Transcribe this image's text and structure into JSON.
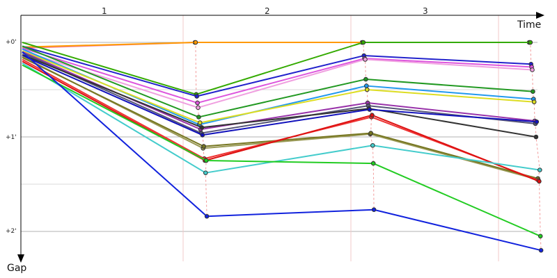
{
  "chart_data": {
    "type": "line",
    "title": "",
    "xlabel": "Time",
    "ylabel": "Gap",
    "lap_labels": [
      "1",
      "2",
      "3"
    ],
    "y_ticks": [
      "+0'",
      "+1'",
      "+2'"
    ],
    "ylim": [
      0,
      2.2
    ],
    "y_inverted": true,
    "grid": true,
    "series": [
      {
        "color": "#f080a8",
        "points": [
          [
            0.0,
            0.06
          ],
          [
            1.0,
            0.0
          ],
          [
            2.0,
            0.0
          ],
          [
            3.0,
            0.0
          ]
        ]
      },
      {
        "color": "#ff9900",
        "points": [
          [
            0.0,
            0.05
          ],
          [
            1.0,
            0.0
          ],
          [
            2.0,
            0.0
          ],
          [
            3.0,
            0.0
          ]
        ]
      },
      {
        "color": "#33aa00",
        "points": [
          [
            0.0,
            0.0
          ],
          [
            1.0,
            0.55
          ],
          [
            2.0,
            0.0
          ],
          [
            3.0,
            0.0
          ]
        ]
      },
      {
        "color": "#2222cc",
        "points": [
          [
            0.0,
            0.04
          ],
          [
            1.0,
            0.57
          ],
          [
            2.0,
            0.14
          ],
          [
            3.0,
            0.23
          ]
        ]
      },
      {
        "color": "#dd55dd",
        "points": [
          [
            0.0,
            0.06
          ],
          [
            1.0,
            0.64
          ],
          [
            2.0,
            0.17
          ],
          [
            3.0,
            0.26
          ]
        ]
      },
      {
        "color": "#f0a0e0",
        "points": [
          [
            0.0,
            0.09
          ],
          [
            1.0,
            0.69
          ],
          [
            2.0,
            0.18
          ],
          [
            3.0,
            0.29
          ]
        ]
      },
      {
        "color": "#229922",
        "points": [
          [
            0.0,
            0.04
          ],
          [
            1.0,
            0.79
          ],
          [
            2.0,
            0.39
          ],
          [
            3.0,
            0.52
          ]
        ]
      },
      {
        "color": "#2299ee",
        "points": [
          [
            0.0,
            0.07
          ],
          [
            1.0,
            0.87
          ],
          [
            2.0,
            0.46
          ],
          [
            3.0,
            0.6
          ]
        ]
      },
      {
        "color": "#dddd22",
        "points": [
          [
            0.0,
            0.09
          ],
          [
            1.0,
            0.85
          ],
          [
            2.0,
            0.5
          ],
          [
            3.0,
            0.63
          ]
        ]
      },
      {
        "color": "#9933aa",
        "points": [
          [
            0.0,
            0.1
          ],
          [
            1.0,
            0.92
          ],
          [
            2.0,
            0.64
          ],
          [
            3.0,
            0.83
          ]
        ]
      },
      {
        "color": "#555577",
        "points": [
          [
            0.0,
            0.11
          ],
          [
            1.0,
            0.96
          ],
          [
            2.0,
            0.67
          ],
          [
            3.0,
            0.86
          ]
        ]
      },
      {
        "color": "#333333",
        "points": [
          [
            0.0,
            0.13
          ],
          [
            1.0,
            0.9
          ],
          [
            2.0,
            0.7
          ],
          [
            3.0,
            1.0
          ]
        ]
      },
      {
        "color": "#1111bb",
        "points": [
          [
            0.0,
            0.14
          ],
          [
            1.0,
            0.98
          ],
          [
            2.0,
            0.71
          ],
          [
            3.0,
            0.84
          ]
        ]
      },
      {
        "color": "#999955",
        "points": [
          [
            0.0,
            0.15
          ],
          [
            1.0,
            1.12
          ],
          [
            2.0,
            0.97
          ],
          [
            3.0,
            1.45
          ]
        ]
      },
      {
        "color": "#777722",
        "points": [
          [
            0.0,
            0.16
          ],
          [
            1.0,
            1.1
          ],
          [
            2.0,
            0.96
          ],
          [
            3.0,
            1.44
          ]
        ]
      },
      {
        "color": "#ee3333",
        "points": [
          [
            0.0,
            0.18
          ],
          [
            1.0,
            1.23
          ],
          [
            2.0,
            0.79
          ],
          [
            3.0,
            1.46
          ]
        ]
      },
      {
        "color": "#dd1111",
        "points": [
          [
            0.0,
            0.2
          ],
          [
            1.0,
            1.25
          ],
          [
            2.0,
            0.77
          ],
          [
            3.0,
            1.47
          ]
        ]
      },
      {
        "color": "#44cccc",
        "points": [
          [
            0.0,
            0.22
          ],
          [
            1.0,
            1.38
          ],
          [
            2.0,
            1.09
          ],
          [
            3.0,
            1.35
          ]
        ]
      },
      {
        "color": "#22cc22",
        "points": [
          [
            0.0,
            0.24
          ],
          [
            1.0,
            1.25
          ],
          [
            2.0,
            1.28
          ],
          [
            3.0,
            2.05
          ]
        ]
      },
      {
        "color": "#1122dd",
        "points": [
          [
            0.0,
            0.1
          ],
          [
            1.0,
            1.84
          ],
          [
            2.0,
            1.77
          ],
          [
            3.0,
            2.2
          ]
        ]
      }
    ]
  }
}
